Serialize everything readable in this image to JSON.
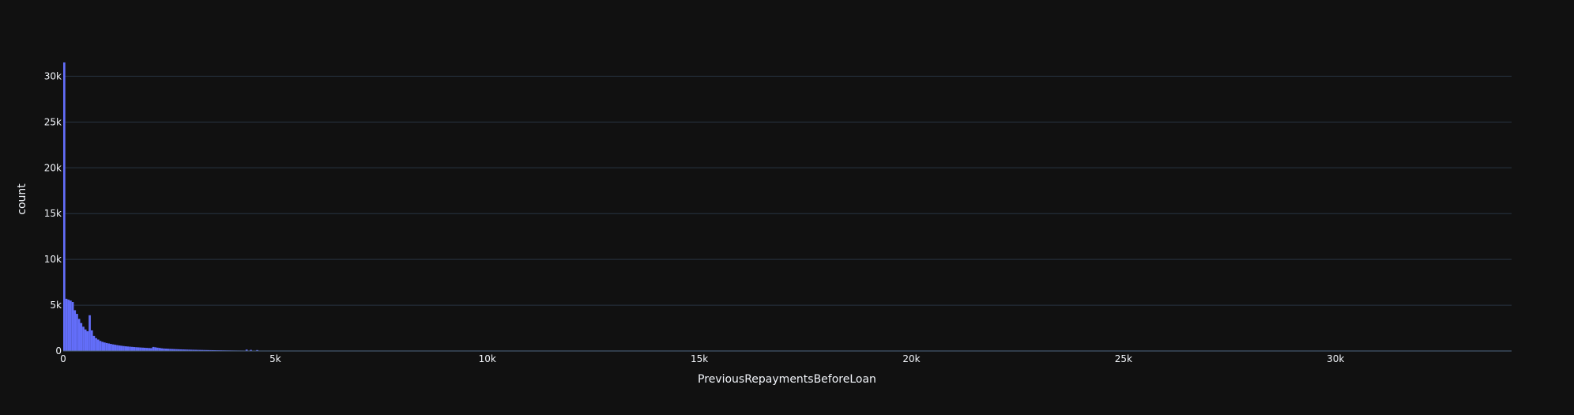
{
  "chart_data": {
    "type": "histogram",
    "title": "",
    "xlabel": "PreviousRepaymentsBeforeLoan",
    "ylabel": "count",
    "xlim": [
      0,
      34150
    ],
    "ylim": [
      0,
      31500
    ],
    "grid": {
      "x": false,
      "y": true
    },
    "bar_color": "#636efa",
    "background_color": "#111111",
    "grid_color": "#283442",
    "text_color": "#f2f5fa",
    "x_ticks": [
      {
        "value": 0,
        "label": "0"
      },
      {
        "value": 5000,
        "label": "5k"
      },
      {
        "value": 10000,
        "label": "10k"
      },
      {
        "value": 15000,
        "label": "15k"
      },
      {
        "value": 20000,
        "label": "20k"
      },
      {
        "value": 25000,
        "label": "25k"
      },
      {
        "value": 30000,
        "label": "30k"
      }
    ],
    "y_ticks": [
      {
        "value": 0,
        "label": "0"
      },
      {
        "value": 5000,
        "label": "5k"
      },
      {
        "value": 10000,
        "label": "10k"
      },
      {
        "value": 15000,
        "label": "15k"
      },
      {
        "value": 20000,
        "label": "20k"
      },
      {
        "value": 25000,
        "label": "25k"
      },
      {
        "value": 30000,
        "label": "30k"
      }
    ],
    "bin_width": 50,
    "bins": [
      [
        0,
        31500
      ],
      [
        50,
        5700
      ],
      [
        100,
        5600
      ],
      [
        150,
        5500
      ],
      [
        200,
        5350
      ],
      [
        250,
        4450
      ],
      [
        300,
        4050
      ],
      [
        350,
        3500
      ],
      [
        400,
        3050
      ],
      [
        450,
        2650
      ],
      [
        500,
        2350
      ],
      [
        550,
        2150
      ],
      [
        600,
        3900
      ],
      [
        650,
        2250
      ],
      [
        700,
        1650
      ],
      [
        750,
        1400
      ],
      [
        800,
        1250
      ],
      [
        850,
        1100
      ],
      [
        900,
        1000
      ],
      [
        950,
        930
      ],
      [
        1000,
        870
      ],
      [
        1050,
        820
      ],
      [
        1100,
        770
      ],
      [
        1150,
        720
      ],
      [
        1200,
        680
      ],
      [
        1250,
        640
      ],
      [
        1300,
        600
      ],
      [
        1350,
        570
      ],
      [
        1400,
        540
      ],
      [
        1450,
        510
      ],
      [
        1500,
        490
      ],
      [
        1550,
        470
      ],
      [
        1600,
        450
      ],
      [
        1650,
        430
      ],
      [
        1700,
        410
      ],
      [
        1750,
        395
      ],
      [
        1800,
        380
      ],
      [
        1850,
        365
      ],
      [
        1900,
        350
      ],
      [
        1950,
        335
      ],
      [
        2000,
        320
      ],
      [
        2050,
        310
      ],
      [
        2100,
        440
      ],
      [
        2150,
        400
      ],
      [
        2200,
        360
      ],
      [
        2250,
        330
      ],
      [
        2300,
        290
      ],
      [
        2350,
        270
      ],
      [
        2400,
        255
      ],
      [
        2450,
        240
      ],
      [
        2500,
        228
      ],
      [
        2550,
        216
      ],
      [
        2600,
        205
      ],
      [
        2650,
        195
      ],
      [
        2700,
        185
      ],
      [
        2750,
        176
      ],
      [
        2800,
        168
      ],
      [
        2850,
        160
      ],
      [
        2900,
        152
      ],
      [
        2950,
        145
      ],
      [
        3000,
        138
      ],
      [
        3050,
        132
      ],
      [
        3100,
        126
      ],
      [
        3150,
        120
      ],
      [
        3200,
        115
      ],
      [
        3250,
        110
      ],
      [
        3300,
        105
      ],
      [
        3350,
        100
      ],
      [
        3400,
        96
      ],
      [
        3450,
        92
      ],
      [
        3500,
        88
      ],
      [
        3550,
        84
      ],
      [
        3600,
        80
      ],
      [
        3650,
        77
      ],
      [
        3700,
        74
      ],
      [
        3750,
        70
      ],
      [
        3800,
        67
      ],
      [
        3850,
        64
      ],
      [
        3900,
        62
      ],
      [
        3950,
        59
      ],
      [
        4000,
        56
      ],
      [
        4050,
        54
      ],
      [
        4100,
        52
      ],
      [
        4150,
        50
      ],
      [
        4200,
        48
      ],
      [
        4250,
        46
      ],
      [
        4300,
        150
      ],
      [
        4350,
        44
      ],
      [
        4400,
        120
      ],
      [
        4450,
        40
      ],
      [
        4500,
        38
      ],
      [
        4550,
        100
      ],
      [
        4600,
        36
      ],
      [
        4650,
        34
      ],
      [
        4700,
        33
      ],
      [
        4750,
        32
      ],
      [
        4800,
        30
      ],
      [
        4850,
        29
      ],
      [
        4900,
        28
      ],
      [
        4950,
        27
      ],
      [
        5000,
        26
      ],
      [
        5200,
        24
      ],
      [
        5400,
        22
      ],
      [
        5600,
        20
      ],
      [
        5800,
        18
      ],
      [
        6000,
        17
      ],
      [
        6200,
        16
      ],
      [
        6400,
        15
      ],
      [
        6600,
        40
      ],
      [
        6800,
        12
      ],
      [
        7000,
        11
      ],
      [
        7200,
        30
      ],
      [
        7400,
        9
      ],
      [
        7800,
        35
      ],
      [
        8000,
        7
      ],
      [
        8400,
        6
      ],
      [
        9000,
        4
      ],
      [
        10000,
        3
      ],
      [
        12000,
        2
      ],
      [
        15000,
        1
      ]
    ]
  }
}
